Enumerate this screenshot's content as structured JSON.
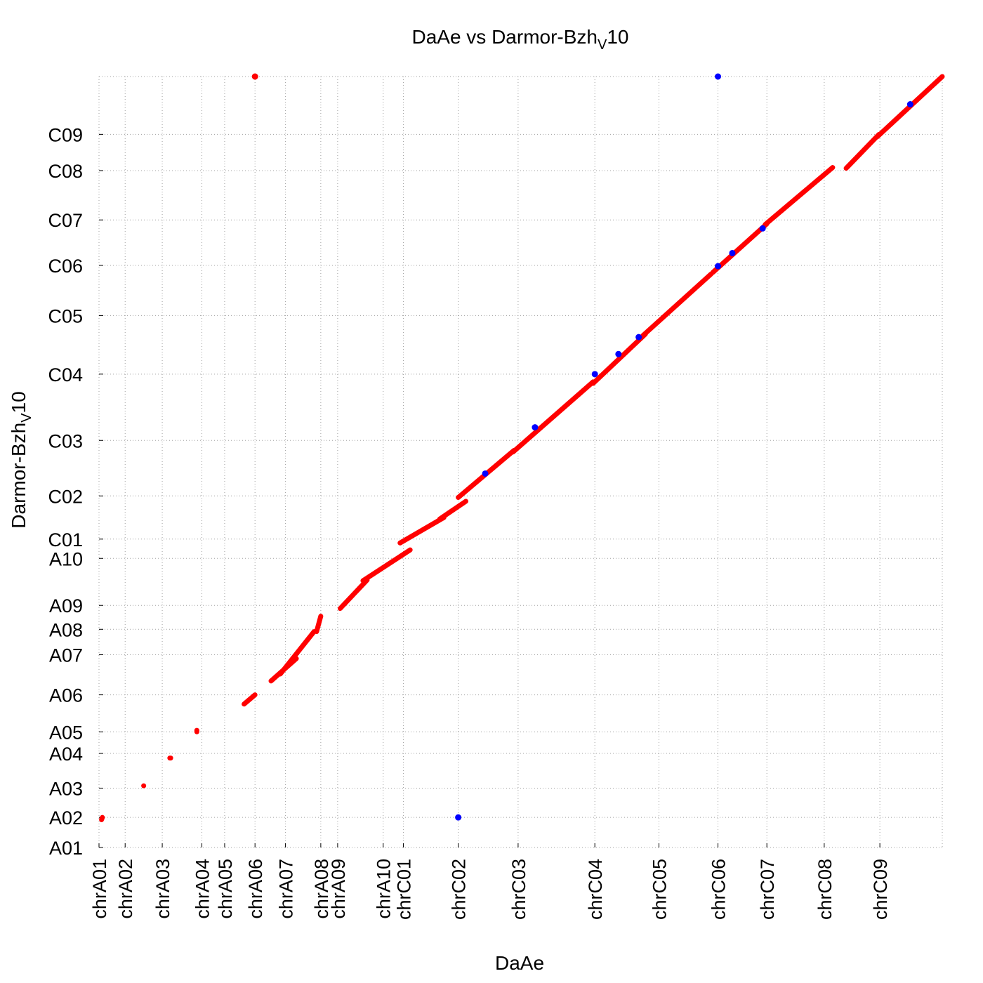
{
  "chart_data": {
    "type": "scatter",
    "title": "DaAe vs Darmor-Bzh",
    "title_subscript": "V",
    "title_suffix": "10",
    "xlabel": "DaAe",
    "ylabel": "Darmor-Bzh",
    "ylabel_subscript": "V",
    "ylabel_suffix": "10",
    "grid": true,
    "x_ticks": [
      {
        "label": "chrA01",
        "pos": 0
      },
      {
        "label": "chrA02",
        "pos": 3.1
      },
      {
        "label": "chrA03",
        "pos": 7.5
      },
      {
        "label": "chrA04",
        "pos": 12.2
      },
      {
        "label": "chrA05",
        "pos": 14.9
      },
      {
        "label": "chrA06",
        "pos": 18.5
      },
      {
        "label": "chrA07",
        "pos": 22.1
      },
      {
        "label": "chrA08",
        "pos": 26.3
      },
      {
        "label": "chrA09",
        "pos": 28.3
      },
      {
        "label": "chrA10",
        "pos": 33.7
      },
      {
        "label": "chrC01",
        "pos": 36.1
      },
      {
        "label": "chrC02",
        "pos": 42.6
      },
      {
        "label": "chrC03",
        "pos": 49.7
      },
      {
        "label": "chrC04",
        "pos": 58.8
      },
      {
        "label": "chrC05",
        "pos": 66.4
      },
      {
        "label": "chrC06",
        "pos": 73.4
      },
      {
        "label": "chrC07",
        "pos": 79.2
      },
      {
        "label": "chrC08",
        "pos": 86.0
      },
      {
        "label": "chrC09",
        "pos": 92.6
      }
    ],
    "x_range": [
      0,
      100
    ],
    "y_ticks": [
      {
        "label": "A01",
        "pos": 0
      },
      {
        "label": "A02",
        "pos": 3.9
      },
      {
        "label": "A03",
        "pos": 7.7
      },
      {
        "label": "A04",
        "pos": 12.2
      },
      {
        "label": "A05",
        "pos": 15.0
      },
      {
        "label": "A06",
        "pos": 19.8
      },
      {
        "label": "A07",
        "pos": 25.0
      },
      {
        "label": "A08",
        "pos": 28.3
      },
      {
        "label": "A09",
        "pos": 31.4
      },
      {
        "label": "A10",
        "pos": 37.5
      },
      {
        "label": "C01",
        "pos": 40.0
      },
      {
        "label": "C02",
        "pos": 45.6
      },
      {
        "label": "C03",
        "pos": 52.8
      },
      {
        "label": "C04",
        "pos": 61.4
      },
      {
        "label": "C05",
        "pos": 69.0
      },
      {
        "label": "C06",
        "pos": 75.5
      },
      {
        "label": "C07",
        "pos": 81.4
      },
      {
        "label": "C08",
        "pos": 87.8
      },
      {
        "label": "C09",
        "pos": 92.5
      }
    ],
    "y_range": [
      0,
      100
    ],
    "series": [
      {
        "color": "#ff0000",
        "segments": [
          [
            [
              0.3,
              0.4
            ],
            [
              3.6,
              3.9
            ]
          ],
          [
            [
              5.3,
              5.3
            ],
            [
              8.0,
              8.0
            ]
          ],
          [
            [
              8.4,
              8.5
            ],
            [
              11.6,
              11.6
            ]
          ],
          [
            [
              11.6,
              11.6
            ],
            [
              15.2,
              15.0
            ]
          ],
          [
            [
              17.2,
              18.5
            ],
            [
              18.6,
              19.8
            ]
          ],
          [
            [
              20.4,
              23.4
            ],
            [
              21.6,
              24.5
            ]
          ],
          [
            [
              21.5,
              25.5
            ],
            [
              22.5,
              28.0
            ]
          ],
          [
            [
              25.8,
              26.3
            ],
            [
              28.0,
              30.0
            ]
          ],
          [
            [
              28.6,
              31.8
            ],
            [
              31.0,
              34.7
            ]
          ],
          [
            [
              31.3,
              36.9
            ],
            [
              34.6,
              38.6
            ]
          ],
          [
            [
              35.7,
              40.9
            ],
            [
              39.5,
              42.8
            ]
          ],
          [
            [
              40.4,
              43.5
            ],
            [
              42.6,
              44.9
            ]
          ],
          [
            [
              42.6,
              49.2
            ],
            [
              45.4,
              51.5
            ]
          ],
          [
            [
              49.1,
              58.6
            ],
            [
              51.3,
              60.4
            ]
          ],
          [
            [
              58.6,
              64.8
            ],
            [
              60.2,
              66.6
            ]
          ],
          [
            [
              64.5,
              72.6
            ],
            [
              66.4,
              74.4
            ]
          ],
          [
            [
              72.8,
              79.2
            ],
            [
              74.6,
              80.9
            ]
          ],
          [
            [
              79.0,
              87.0
            ],
            [
              80.8,
              88.2
            ]
          ],
          [
            [
              88.6,
              92.5
            ],
            [
              88.1,
              92.5
            ]
          ],
          [
            [
              92.3,
              100
            ],
            [
              92.2,
              100
            ]
          ]
        ],
        "points": [
          [
            18.5,
            100
          ]
        ]
      },
      {
        "color": "#0000ff",
        "points": [
          [
            42.6,
            3.9
          ],
          [
            45.8,
            48.5
          ],
          [
            51.7,
            54.5
          ],
          [
            58.8,
            61.4
          ],
          [
            61.6,
            64.0
          ],
          [
            64.0,
            66.2
          ],
          [
            73.4,
            100
          ],
          [
            73.4,
            75.4
          ],
          [
            75.1,
            77.1
          ],
          [
            78.7,
            80.3
          ],
          [
            96.2,
            96.4
          ]
        ]
      }
    ]
  }
}
